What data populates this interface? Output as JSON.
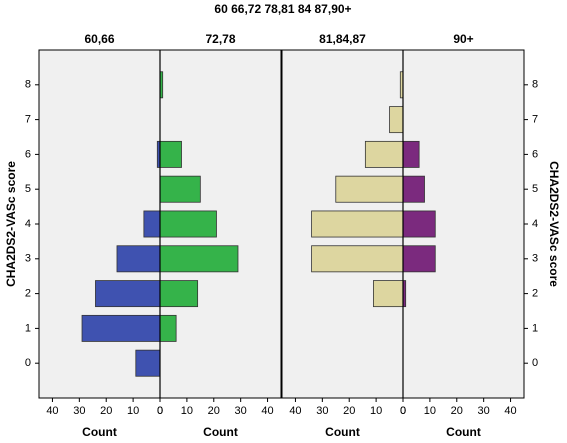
{
  "chart_data": {
    "type": "bar",
    "orientation": "horizontal",
    "title": "60 66,72 78,81 84 87,90+",
    "y_label": "CHA2DS2-VASc score",
    "x_label": "Count",
    "categories": [
      "0",
      "1",
      "2",
      "3",
      "4",
      "5",
      "6",
      "7",
      "8"
    ],
    "ylim": [
      -1,
      9
    ],
    "yticks": [
      0,
      1,
      2,
      3,
      4,
      5,
      6,
      7,
      8
    ],
    "xlim": [
      0,
      45
    ],
    "xticks": [
      0,
      10,
      20,
      30,
      40
    ],
    "series": [
      {
        "name": "60,66",
        "side": "left",
        "color": "#3f52b0",
        "values": [
          9,
          29,
          24,
          16,
          6,
          0,
          1,
          0,
          0
        ]
      },
      {
        "name": "72,78",
        "side": "right",
        "color": "#35b34a",
        "values": [
          0,
          6,
          14,
          29,
          21,
          15,
          8,
          0,
          1
        ]
      },
      {
        "name": "81,84,87",
        "side": "left",
        "color": "#ddd6a0",
        "values": [
          0,
          0,
          11,
          34,
          34,
          25,
          14,
          5,
          1
        ]
      },
      {
        "name": "90+",
        "side": "right",
        "color": "#7b2a7e",
        "values": [
          0,
          0,
          1,
          12,
          12,
          8,
          6,
          0,
          0
        ]
      }
    ]
  }
}
